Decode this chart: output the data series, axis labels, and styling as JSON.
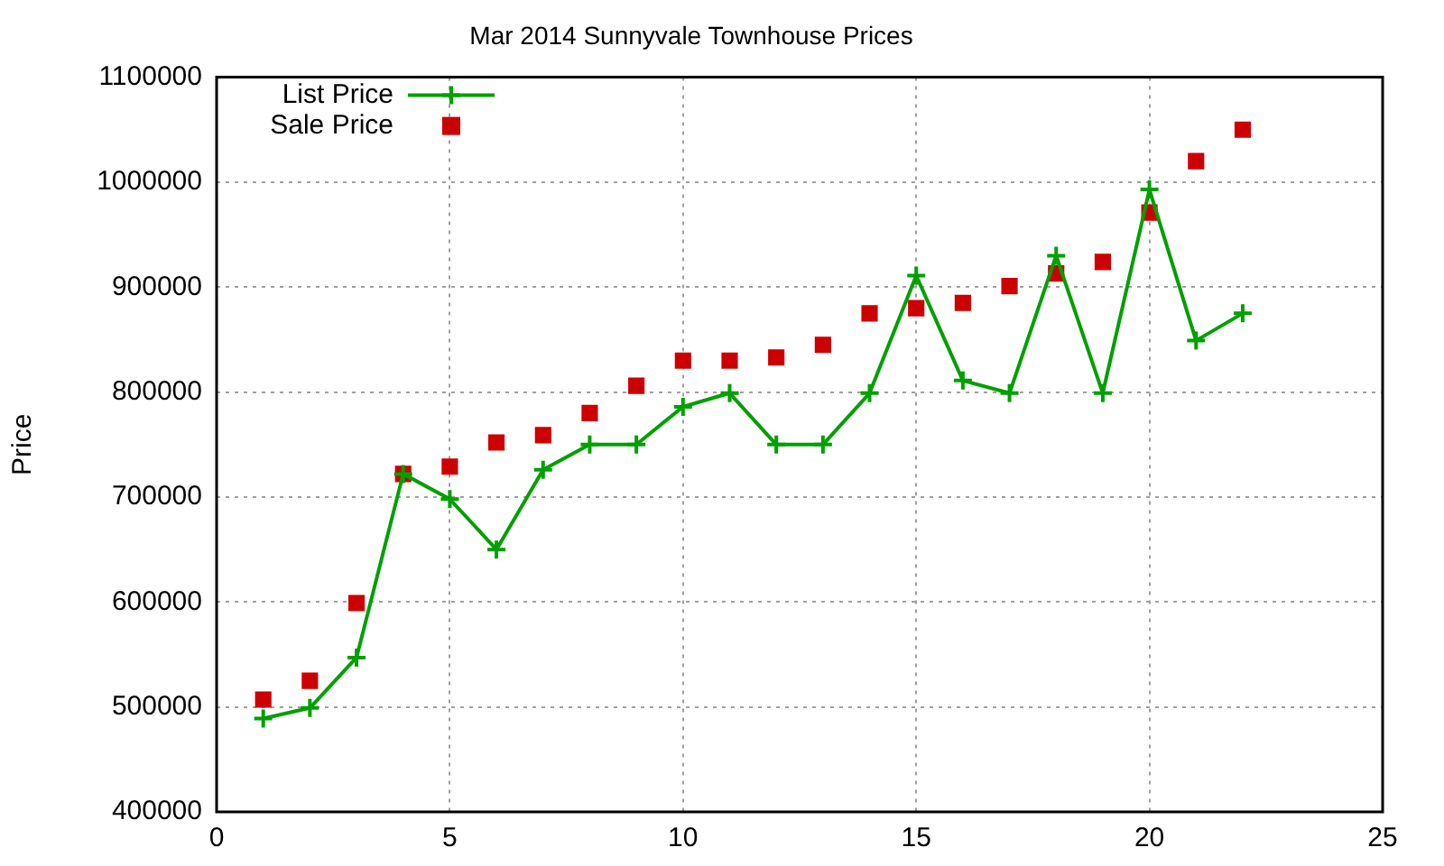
{
  "chart_data": {
    "type": "line",
    "title": "Mar 2014 Sunnyvale Townhouse Prices",
    "ylabel": "Price",
    "x": [
      1,
      2,
      3,
      4,
      5,
      6,
      7,
      8,
      9,
      10,
      11,
      12,
      13,
      14,
      15,
      16,
      17,
      18,
      19,
      20,
      21,
      22
    ],
    "series": [
      {
        "name": "List Price",
        "type": "line",
        "marker": "cross",
        "color": "#00a000",
        "values": [
          489000,
          499000,
          547000,
          722000,
          698000,
          650000,
          726000,
          750000,
          750000,
          786000,
          799000,
          750000,
          750000,
          799000,
          911000,
          811000,
          799000,
          930000,
          799000,
          993000,
          849000,
          875000
        ]
      },
      {
        "name": "Sale Price",
        "type": "scatter",
        "marker": "square",
        "color": "#cc0000",
        "values": [
          507000,
          525000,
          599000,
          722000,
          729000,
          752000,
          759000,
          780000,
          806000,
          830000,
          830000,
          833000,
          845000,
          875000,
          880000,
          885000,
          901000,
          913000,
          924000,
          971000,
          1020000,
          1050000
        ]
      }
    ],
    "xlim": [
      0,
      25
    ],
    "xticks": [
      0,
      5,
      10,
      15,
      20,
      25
    ],
    "ylim": [
      400000,
      1100000
    ],
    "yticks": [
      400000,
      500000,
      600000,
      700000,
      800000,
      900000,
      1000000,
      1100000
    ],
    "grid": true,
    "legend": "top left"
  }
}
